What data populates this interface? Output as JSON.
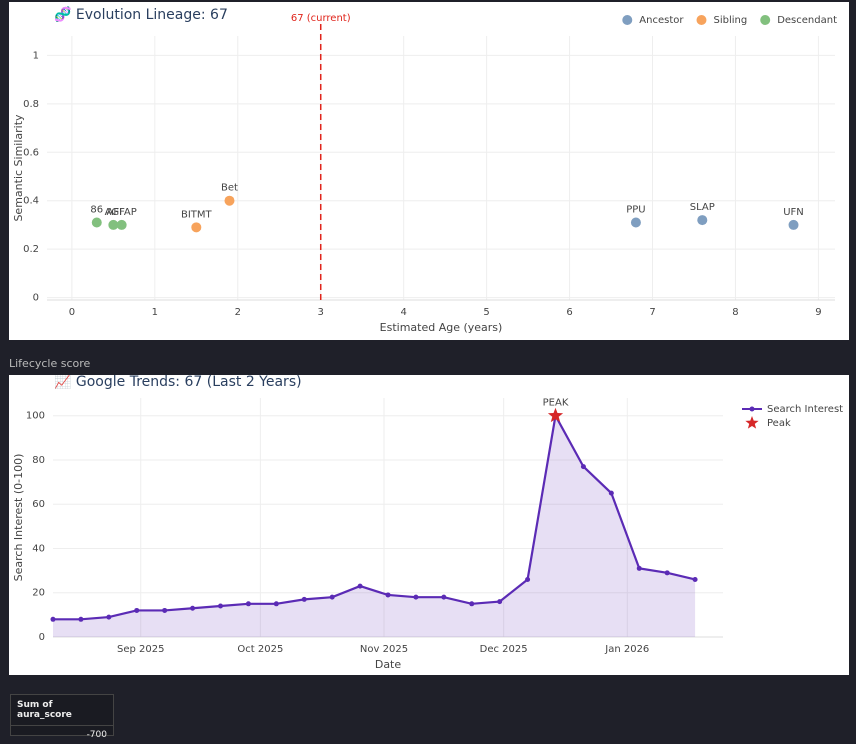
{
  "chart_data": [
    {
      "type": "scatter",
      "title": "🧬 Evolution Lineage: 67",
      "x_label": "Estimated Age (years)",
      "y_label": "Semantic Similarity",
      "xlim": [
        -0.3,
        9.2
      ],
      "ylim": [
        -0.01,
        1.08
      ],
      "xticks": [
        0,
        1,
        2,
        3,
        4,
        5,
        6,
        7,
        8,
        9
      ],
      "yticks": [
        0,
        0.2,
        0.4,
        0.6,
        0.8,
        1
      ],
      "grid": true,
      "legend": "top-right",
      "series": [
        {
          "name": "Ancestor",
          "color": "#7f9ec0",
          "x": [
            6.8,
            7.6,
            8.7
          ],
          "values": [
            0.31,
            0.32,
            0.3
          ],
          "labels": [
            "PPU",
            "SLAP",
            "UFN"
          ]
        },
        {
          "name": "Sibling",
          "color": "#f7a35c",
          "x": [
            1.5,
            1.9
          ],
          "values": [
            0.29,
            0.4
          ],
          "labels": [
            "BITMT",
            "Bet"
          ]
        },
        {
          "name": "Descendant",
          "color": "#82c07e",
          "x": [
            0.3,
            0.5,
            0.6
          ],
          "values": [
            0.31,
            0.3,
            0.3
          ],
          "labels": [
            "86",
            "AGI",
            "AFFAP"
          ]
        }
      ],
      "vline": {
        "x": 3,
        "label": "67 (current)",
        "color": "#e0241b"
      }
    },
    {
      "type": "line",
      "title": "📈 Google Trends: 67 (Last 2 Years)",
      "x_label": "Date",
      "y_label": "Search Interest (0-100)",
      "xlim": [
        "2025-08-10",
        "2026-01-25"
      ],
      "ylim": [
        0,
        108
      ],
      "xticks": [
        {
          "value": "2025-09-01",
          "label": "Sep 2025"
        },
        {
          "value": "2025-10-01",
          "label": "Oct 2025"
        },
        {
          "value": "2025-11-01",
          "label": "Nov 2025"
        },
        {
          "value": "2025-12-01",
          "label": "Dec 2025"
        },
        {
          "value": "2026-01-01",
          "label": "Jan 2026"
        }
      ],
      "yticks": [
        0,
        20,
        40,
        60,
        80,
        100
      ],
      "grid": true,
      "legend": "top-right",
      "series": [
        {
          "name": "Search Interest",
          "color": "#5b2bb5",
          "x": [
            "2025-08-10",
            "2025-08-17",
            "2025-08-24",
            "2025-08-31",
            "2025-09-07",
            "2025-09-14",
            "2025-09-21",
            "2025-09-28",
            "2025-10-05",
            "2025-10-12",
            "2025-10-19",
            "2025-10-26",
            "2025-11-02",
            "2025-11-09",
            "2025-11-16",
            "2025-11-23",
            "2025-11-30",
            "2025-12-07",
            "2025-12-14",
            "2025-12-21",
            "2025-12-28",
            "2026-01-04",
            "2026-01-11",
            "2026-01-18",
            "2026-01-25"
          ],
          "values": [
            8,
            8,
            9,
            12,
            12,
            13,
            14,
            15,
            15,
            17,
            18,
            23,
            19,
            18,
            18,
            15,
            16,
            26,
            100,
            77,
            65,
            31,
            29,
            26,
            null
          ]
        },
        {
          "name": "Peak",
          "color": "#d62728",
          "x": [
            "2025-12-14"
          ],
          "values": [
            100
          ],
          "labels": [
            "PEAK"
          ]
        }
      ]
    }
  ],
  "section_label": "Lifecycle score",
  "metric": {
    "label": "Sum of aura_score",
    "value": -700
  }
}
